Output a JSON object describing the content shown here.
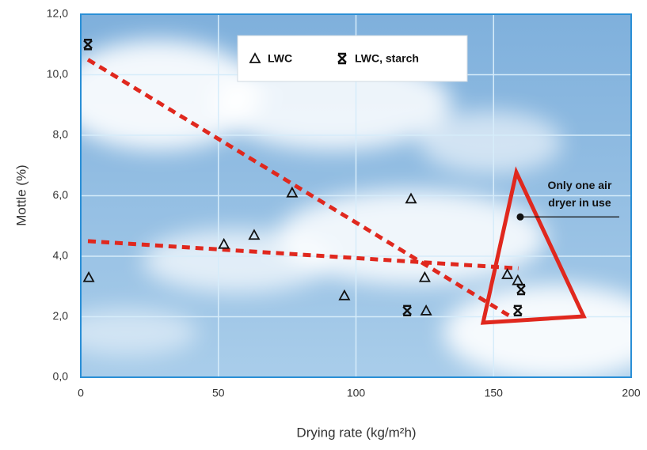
{
  "chart_data": {
    "type": "scatter",
    "x_label": "Drying rate (kg/m²h)",
    "y_label": "Mottle (%)",
    "xlim": [
      0,
      200
    ],
    "xticks": [
      0,
      50,
      100,
      150,
      200
    ],
    "ylim": [
      0,
      12
    ],
    "yticks": [
      {
        "value": 0,
        "label": "0,0"
      },
      {
        "value": 2,
        "label": "2,0"
      },
      {
        "value": 4,
        "label": "4,0"
      },
      {
        "value": 6,
        "label": "6,0"
      },
      {
        "value": 8,
        "label": "8,0"
      },
      {
        "value": 10,
        "label": "10,0"
      },
      {
        "value": 12,
        "label": "12,0"
      }
    ],
    "grid": true,
    "legend": "upper center",
    "series": [
      {
        "name": "LWC",
        "marker": "triangle",
        "color": "#111111",
        "x": [
          2.9,
          52,
          63,
          76.8,
          95.8,
          120,
          125,
          125.5,
          155,
          158.8
        ],
        "values": [
          3.3,
          4.4,
          4.7,
          6.1,
          2.7,
          5.9,
          3.3,
          2.2,
          3.4,
          3.2
        ]
      },
      {
        "name": "LWC, starch",
        "marker": "star",
        "color": "#111111",
        "x": [
          2.6,
          118.6,
          158.8,
          160
        ],
        "values": [
          11.0,
          2.2,
          2.2,
          2.9
        ]
      }
    ],
    "trend_lines": [
      {
        "color": "#e0281e",
        "x": [
          2.6,
          156.3
        ],
        "values": [
          10.5,
          2.0
        ]
      },
      {
        "color": "#e0281e",
        "x": [
          2.6,
          159
        ],
        "values": [
          4.5,
          3.6
        ]
      }
    ],
    "annotation": {
      "text": [
        "Only one air",
        "dryer in use"
      ],
      "x": 159.7,
      "y": 5.3
    }
  }
}
